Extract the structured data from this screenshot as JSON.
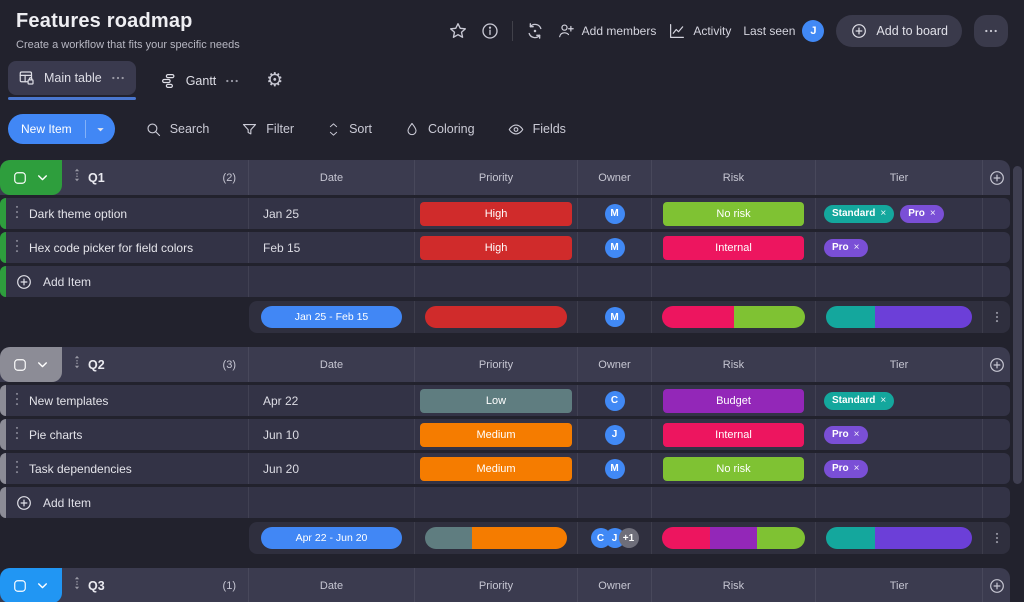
{
  "header": {
    "title": "Features roadmap",
    "subtitle": "Create a workflow that fits your specific needs",
    "add_members_label": "Add members",
    "activity_label": "Activity",
    "last_seen_label": "Last seen",
    "avatar_initial": "J",
    "add_to_board_label": "Add to board"
  },
  "tabs": [
    {
      "label": "Main table",
      "active": true
    },
    {
      "label": "Gantt",
      "active": false
    }
  ],
  "toolbar": {
    "new_item_label": "New Item",
    "actions": [
      {
        "label": "Search",
        "icon": "search-icon"
      },
      {
        "label": "Filter",
        "icon": "filter-icon"
      },
      {
        "label": "Sort",
        "icon": "sort-icon"
      },
      {
        "label": "Coloring",
        "icon": "droplet-icon"
      },
      {
        "label": "Fields",
        "icon": "eye-icon"
      }
    ]
  },
  "columns": [
    "Date",
    "Priority",
    "Owner",
    "Risk",
    "Tier"
  ],
  "ui": {
    "tag_remove_glyph": "×",
    "add_item_label": "Add Item"
  },
  "groups": [
    {
      "name": "Q1",
      "count": "(2)",
      "color": "#2e9e3d",
      "header_only": false,
      "items": [
        {
          "name": "Dark theme option",
          "date": "Jan 25",
          "priority": {
            "label": "High",
            "color": "#d02b2b"
          },
          "owner": {
            "initial": "M",
            "color": "#4189f5"
          },
          "risk": {
            "label": "No risk",
            "color": "#7fc233"
          },
          "tiers": [
            {
              "label": "Standard",
              "color": "#14a79d"
            },
            {
              "label": "Pro",
              "color": "#7a4fd6"
            }
          ]
        },
        {
          "name": "Hex code picker for field colors",
          "date": "Feb 15",
          "priority": {
            "label": "High",
            "color": "#d02b2b"
          },
          "owner": {
            "initial": "M",
            "color": "#4189f5"
          },
          "risk": {
            "label": "Internal",
            "color": "#ed155f"
          },
          "tiers": [
            {
              "label": "Pro",
              "color": "#7a4fd6"
            }
          ]
        }
      ],
      "summary": {
        "date_range": "Jan 25 - Feb 15",
        "priority_segments": [
          {
            "color": "#d02b2b",
            "flex": 1
          }
        ],
        "owners": [
          {
            "initial": "M",
            "color": "#4189f5"
          }
        ],
        "risk_segments": [
          {
            "color": "#ed155f",
            "flex": 1
          },
          {
            "color": "#7fc233",
            "flex": 1
          }
        ],
        "tier_segments": [
          {
            "color": "#14a79d",
            "flex": 1
          },
          {
            "color": "#6c3fd8",
            "flex": 2
          }
        ]
      }
    },
    {
      "name": "Q2",
      "count": "(3)",
      "color": "#8c8c96",
      "header_only": false,
      "items": [
        {
          "name": "New templates",
          "date": "Apr 22",
          "priority": {
            "label": "Low",
            "color": "#5f7d80"
          },
          "owner": {
            "initial": "C",
            "color": "#4189f5"
          },
          "risk": {
            "label": "Budget",
            "color": "#9327b8"
          },
          "tiers": [
            {
              "label": "Standard",
              "color": "#14a79d"
            }
          ]
        },
        {
          "name": "Pie charts",
          "date": "Jun 10",
          "priority": {
            "label": "Medium",
            "color": "#f57c00"
          },
          "owner": {
            "initial": "J",
            "color": "#4189f5"
          },
          "risk": {
            "label": "Internal",
            "color": "#ed155f"
          },
          "tiers": [
            {
              "label": "Pro",
              "color": "#7a4fd6"
            }
          ]
        },
        {
          "name": "Task dependencies",
          "date": "Jun 20",
          "priority": {
            "label": "Medium",
            "color": "#f57c00"
          },
          "owner": {
            "initial": "M",
            "color": "#4189f5"
          },
          "risk": {
            "label": "No risk",
            "color": "#7fc233"
          },
          "tiers": [
            {
              "label": "Pro",
              "color": "#7a4fd6"
            }
          ]
        }
      ],
      "summary": {
        "date_range": "Apr 22 - Jun 20",
        "priority_segments": [
          {
            "color": "#5f7d80",
            "flex": 1
          },
          {
            "color": "#f57c00",
            "flex": 2
          }
        ],
        "owners": [
          {
            "initial": "C",
            "color": "#4189f5"
          },
          {
            "initial": "J",
            "color": "#4189f5"
          },
          {
            "initial": "+1",
            "color": "#6e6e7a"
          }
        ],
        "risk_segments": [
          {
            "color": "#ed155f",
            "flex": 1
          },
          {
            "color": "#9327b8",
            "flex": 1
          },
          {
            "color": "#7fc233",
            "flex": 1
          }
        ],
        "tier_segments": [
          {
            "color": "#14a79d",
            "flex": 1
          },
          {
            "color": "#6c3fd8",
            "flex": 2
          }
        ]
      }
    },
    {
      "name": "Q3",
      "count": "(1)",
      "color": "#2196f3",
      "header_only": true,
      "items": [],
      "summary": null
    }
  ]
}
